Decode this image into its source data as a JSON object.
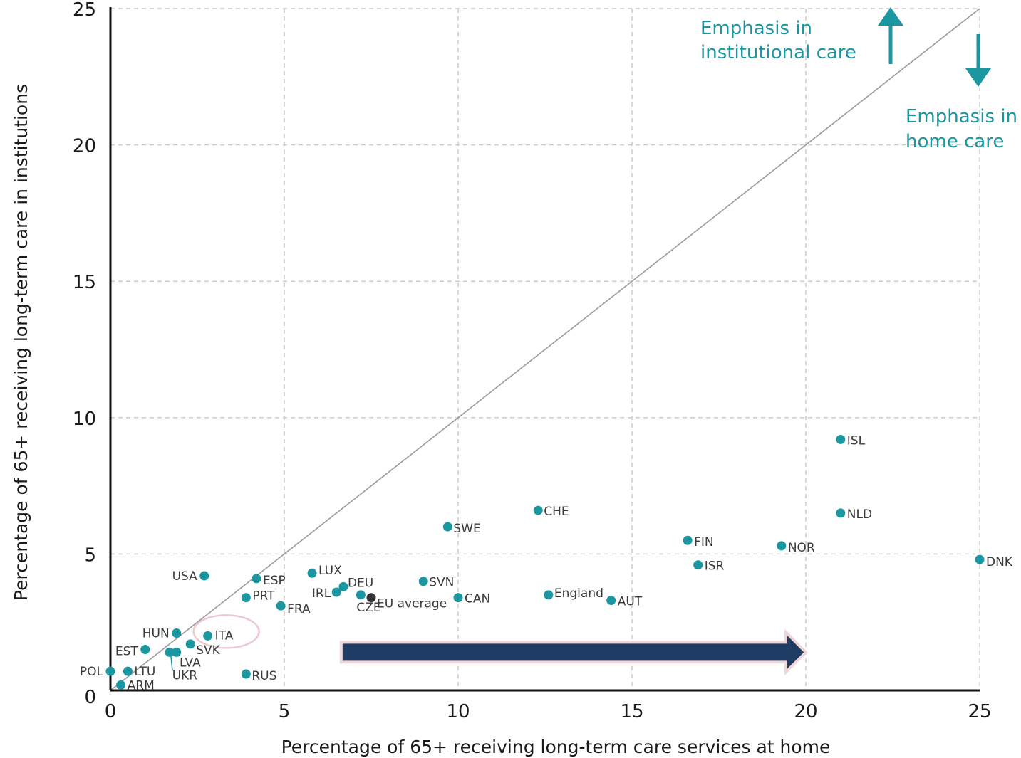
{
  "chart_data": {
    "type": "scatter",
    "xlabel": "Percentage of 65+ receiving long-term care services at home",
    "ylabel": "Percentage of 65+ receiving long-term care in institutions",
    "xlim": [
      0,
      25
    ],
    "ylim": [
      0,
      25
    ],
    "xticks": [
      0,
      5,
      10,
      15,
      20,
      25
    ],
    "yticks": [
      0,
      5,
      10,
      15,
      20,
      25
    ],
    "grid": "dashed",
    "reference_line": "y = x",
    "colors": {
      "point": "#1a97a0",
      "eu_average": "#333333",
      "arrow_big": "#1f3c64",
      "arrow_outline": "#f0d6d8",
      "annotation": "#1a97a0"
    },
    "points": [
      {
        "label": "ISL",
        "x": 21.0,
        "y": 9.2
      },
      {
        "label": "NLD",
        "x": 21.0,
        "y": 6.5
      },
      {
        "label": "DNK",
        "x": 25.0,
        "y": 4.8
      },
      {
        "label": "NOR",
        "x": 19.3,
        "y": 5.3
      },
      {
        "label": "FIN",
        "x": 16.6,
        "y": 5.5
      },
      {
        "label": "ISR",
        "x": 16.9,
        "y": 4.6
      },
      {
        "label": "CHE",
        "x": 12.3,
        "y": 6.6
      },
      {
        "label": "SWE",
        "x": 9.7,
        "y": 6.0
      },
      {
        "label": "England",
        "x": 12.6,
        "y": 3.5
      },
      {
        "label": "AUT",
        "x": 14.4,
        "y": 3.3
      },
      {
        "label": "CAN",
        "x": 10.0,
        "y": 3.4
      },
      {
        "label": "SVN",
        "x": 9.0,
        "y": 4.0
      },
      {
        "label": "EU average",
        "x": 7.5,
        "y": 3.4,
        "highlight": true
      },
      {
        "label": "DEU",
        "x": 6.7,
        "y": 3.8
      },
      {
        "label": "CZE",
        "x": 7.2,
        "y": 3.5
      },
      {
        "label": "IRL",
        "x": 6.5,
        "y": 3.6
      },
      {
        "label": "LUX",
        "x": 5.8,
        "y": 4.3
      },
      {
        "label": "ESP",
        "x": 4.2,
        "y": 4.1
      },
      {
        "label": "PRT",
        "x": 3.9,
        "y": 3.4
      },
      {
        "label": "FRA",
        "x": 4.9,
        "y": 3.1
      },
      {
        "label": "USA",
        "x": 2.7,
        "y": 4.2
      },
      {
        "label": "HUN",
        "x": 1.9,
        "y": 2.1
      },
      {
        "label": "ITA",
        "x": 2.8,
        "y": 2.0
      },
      {
        "label": "EST",
        "x": 1.0,
        "y": 1.5
      },
      {
        "label": "SVK",
        "x": 2.3,
        "y": 1.7
      },
      {
        "label": "LVA",
        "x": 1.7,
        "y": 1.4
      },
      {
        "label": "UKR",
        "x": 1.9,
        "y": 1.4
      },
      {
        "label": "POL",
        "x": 0.0,
        "y": 0.7
      },
      {
        "label": "LTU",
        "x": 0.5,
        "y": 0.7
      },
      {
        "label": "ARM",
        "x": 0.3,
        "y": 0.2
      },
      {
        "label": "RUS",
        "x": 3.9,
        "y": 0.6
      }
    ],
    "annotations": {
      "institutional": [
        "Emphasis in",
        "institutional care"
      ],
      "home": [
        "Emphasis in",
        "home care"
      ]
    },
    "highlight_circle": "ITA",
    "big_arrow": {
      "from_x": 6.8,
      "to_x": 20.0,
      "y": 1.4
    }
  }
}
